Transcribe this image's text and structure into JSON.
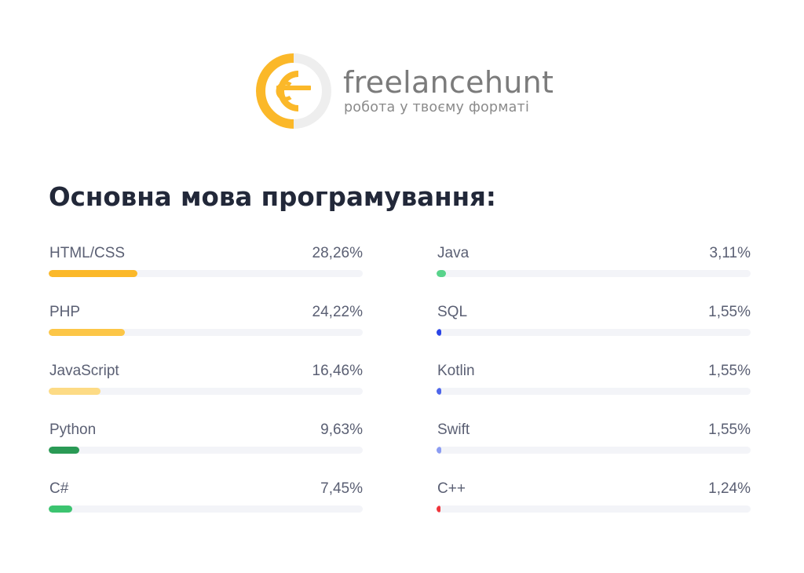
{
  "brand": {
    "name": "freelancehunt",
    "tagline": "робота у твоєму форматі",
    "colors": {
      "yellow": "#fbb829",
      "gray": "#eeeeee"
    }
  },
  "heading": "Основна мова програмування:",
  "chart_data": {
    "type": "bar",
    "title": "Основна мова програмування:",
    "orientation": "horizontal",
    "xlim": [
      0,
      100
    ],
    "unit": "%",
    "layout": "two columns",
    "columns": [
      [
        {
          "label": "HTML/CSS",
          "value": 28.26,
          "display": "28,26%",
          "color": "#fbb829"
        },
        {
          "label": "PHP",
          "value": 24.22,
          "display": "24,22%",
          "color": "#fcc647"
        },
        {
          "label": "JavaScript",
          "value": 16.46,
          "display": "16,46%",
          "color": "#fddb85"
        },
        {
          "label": "Python",
          "value": 9.63,
          "display": "9,63%",
          "color": "#2a9a55"
        },
        {
          "label": "C#",
          "value": 7.45,
          "display": "7,45%",
          "color": "#3cc470"
        }
      ],
      [
        {
          "label": "Java",
          "value": 3.11,
          "display": "3,11%",
          "color": "#58d38b"
        },
        {
          "label": "SQL",
          "value": 1.55,
          "display": "1,55%",
          "color": "#2b45e6"
        },
        {
          "label": "Kotlin",
          "value": 1.55,
          "display": "1,55%",
          "color": "#4e66ea"
        },
        {
          "label": "Swift",
          "value": 1.55,
          "display": "1,55%",
          "color": "#8b9cf2"
        },
        {
          "label": "C++",
          "value": 1.24,
          "display": "1,24%",
          "color": "#f0353b"
        }
      ]
    ]
  }
}
